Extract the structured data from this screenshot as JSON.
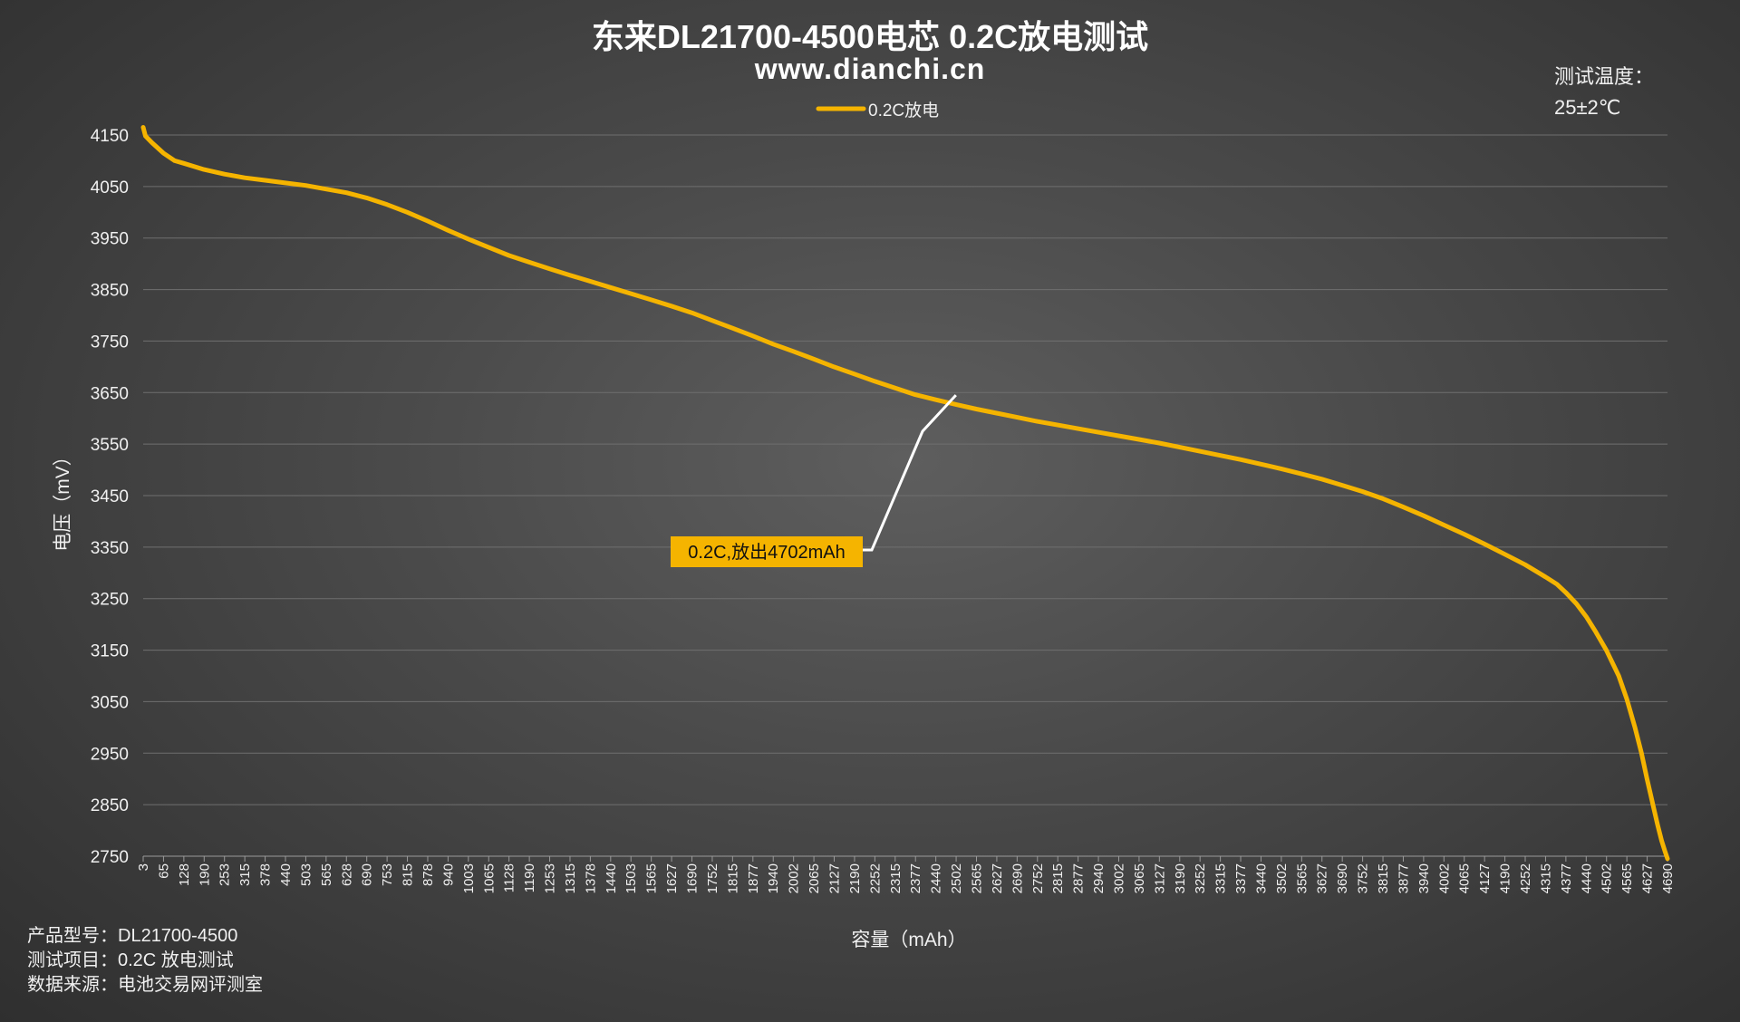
{
  "header": {
    "title": "东来DL21700-4500电芯 0.2C放电测试",
    "subtitle": "www.dianchi.cn"
  },
  "test_conditions": {
    "label": "测试温度：",
    "value": "25±2℃"
  },
  "footer": {
    "product": "产品型号：DL21700-4500",
    "item": "测试项目：0.2C 放电测试",
    "source": "数据来源：电池交易网评测室"
  },
  "colors": {
    "series": "#f5b400",
    "annotation_box": "#f5b400",
    "annotation_leader": "#ffffff",
    "grid": "#6f6f6f"
  },
  "chart_data": {
    "type": "line",
    "title": "东来DL21700-4500电芯 0.2C放电测试",
    "xlabel": "容量（mAh）",
    "ylabel": "电压（mV）",
    "ylim": [
      2750,
      4150
    ],
    "yticks": [
      4150,
      4050,
      3950,
      3850,
      3750,
      3650,
      3550,
      3450,
      3350,
      3250,
      3150,
      3050,
      2950,
      2850,
      2750
    ],
    "xlim": [
      3,
      4690
    ],
    "xticks": [
      3,
      65,
      128,
      190,
      253,
      315,
      378,
      440,
      503,
      565,
      628,
      690,
      753,
      815,
      878,
      940,
      1003,
      1065,
      1128,
      1190,
      1253,
      1315,
      1378,
      1440,
      1503,
      1565,
      1627,
      1690,
      1752,
      1815,
      1877,
      1940,
      2002,
      2065,
      2127,
      2190,
      2252,
      2315,
      2377,
      2440,
      2502,
      2565,
      2627,
      2690,
      2752,
      2815,
      2877,
      2940,
      3002,
      3065,
      3127,
      3190,
      3252,
      3315,
      3377,
      3440,
      3502,
      3565,
      3627,
      3690,
      3752,
      3815,
      3877,
      3940,
      4002,
      4065,
      4127,
      4190,
      4252,
      4315,
      4377,
      4440,
      4502,
      4565,
      4627,
      4690
    ],
    "grid": true,
    "legend": "top-center",
    "series": [
      {
        "name": "0.2C放电",
        "x": [
          3,
          10,
          30,
          65,
          100,
          128,
          190,
          253,
          315,
          378,
          440,
          503,
          565,
          628,
          690,
          753,
          815,
          878,
          940,
          1003,
          1065,
          1128,
          1190,
          1253,
          1315,
          1378,
          1440,
          1503,
          1565,
          1627,
          1690,
          1752,
          1815,
          1877,
          1940,
          2002,
          2065,
          2127,
          2190,
          2252,
          2315,
          2377,
          2440,
          2502,
          2565,
          2627,
          2690,
          2752,
          2815,
          2877,
          2940,
          3002,
          3065,
          3127,
          3190,
          3252,
          3315,
          3377,
          3440,
          3502,
          3565,
          3627,
          3690,
          3752,
          3815,
          3877,
          3940,
          4002,
          4065,
          4127,
          4190,
          4252,
          4315,
          4350,
          4377,
          4410,
          4440,
          4470,
          4502,
          4540,
          4565,
          4590,
          4610,
          4627,
          4645,
          4660,
          4672,
          4682,
          4690
        ],
        "values": [
          4165,
          4148,
          4135,
          4115,
          4100,
          4095,
          4083,
          4074,
          4067,
          4062,
          4057,
          4052,
          4045,
          4038,
          4028,
          4015,
          4000,
          3983,
          3965,
          3948,
          3932,
          3916,
          3903,
          3890,
          3878,
          3866,
          3854,
          3842,
          3830,
          3818,
          3805,
          3790,
          3775,
          3760,
          3744,
          3730,
          3715,
          3700,
          3686,
          3672,
          3659,
          3646,
          3636,
          3627,
          3618,
          3610,
          3602,
          3594,
          3587,
          3580,
          3573,
          3566,
          3559,
          3552,
          3544,
          3536,
          3528,
          3520,
          3511,
          3502,
          3492,
          3482,
          3470,
          3458,
          3444,
          3428,
          3411,
          3393,
          3375,
          3356,
          3336,
          3316,
          3292,
          3278,
          3262,
          3240,
          3215,
          3185,
          3150,
          3100,
          3055,
          3000,
          2950,
          2900,
          2850,
          2810,
          2780,
          2760,
          2745
        ]
      }
    ],
    "annotations": [
      {
        "text": "0.2C,放出4702mAh",
        "x": 2502,
        "y": 3645
      }
    ]
  }
}
